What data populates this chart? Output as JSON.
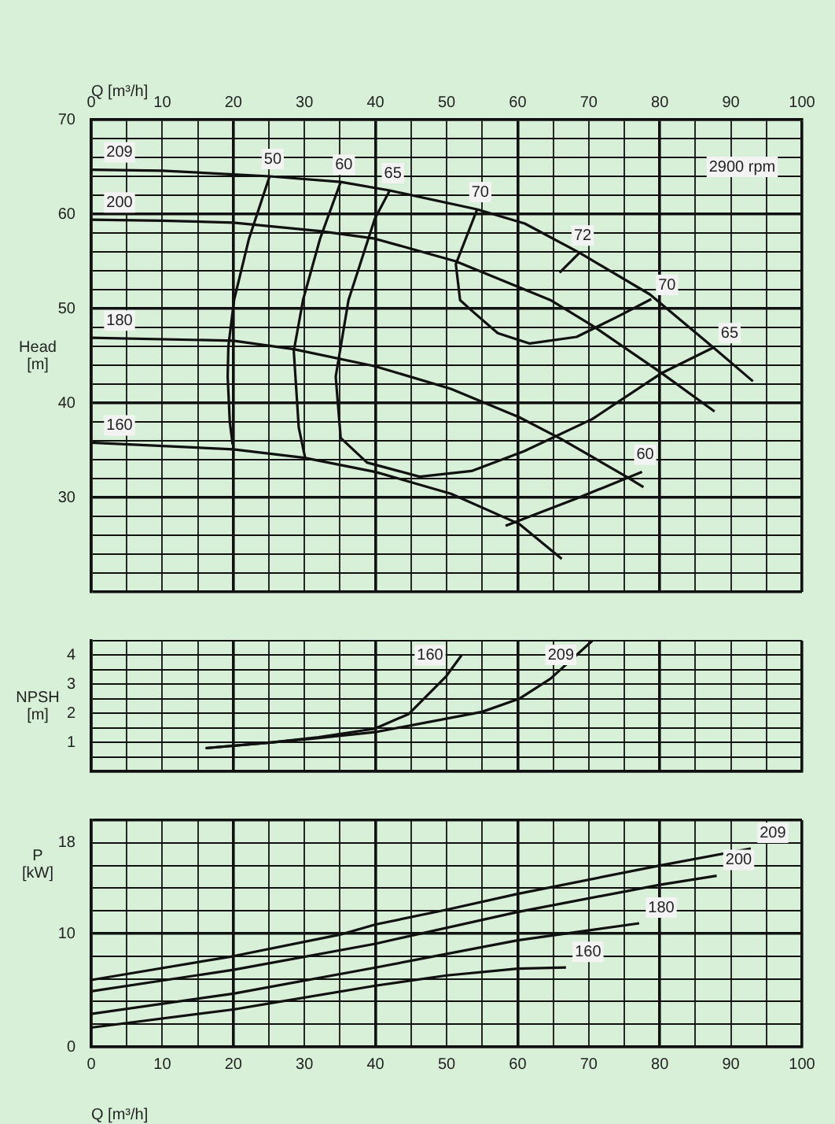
{
  "chart_data": [
    {
      "type": "line",
      "ylabel": "Head [m]",
      "xlabel": "Q [m³/h]",
      "xlim": [
        0,
        100
      ],
      "xticks": [
        0,
        {
          "value": 5,
          "label": null
        },
        10,
        {
          "value": 15,
          "label": null
        },
        20,
        {
          "value": 25,
          "label": null
        },
        30,
        {
          "value": 35,
          "label": null
        },
        40,
        {
          "value": 45,
          "label": null
        },
        50,
        {
          "value": 55,
          "label": null
        },
        60,
        {
          "value": 65,
          "label": null
        },
        70,
        {
          "value": 75,
          "label": null
        },
        80,
        {
          "value": 85,
          "label": null
        },
        90,
        {
          "value": 95,
          "label": null
        },
        100
      ],
      "ylim": [
        20,
        70
      ],
      "yticks": [
        {
          "value": 20,
          "label": null
        },
        {
          "value": 22,
          "label": null
        },
        {
          "value": 24,
          "label": null
        },
        {
          "value": 26,
          "label": null
        },
        {
          "value": 28,
          "label": null
        },
        30,
        {
          "value": 32,
          "label": null
        },
        {
          "value": 34,
          "label": null
        },
        {
          "value": 36,
          "label": null
        },
        {
          "value": 38,
          "label": null
        },
        40,
        {
          "value": 42,
          "label": null
        },
        {
          "value": 44,
          "label": null
        },
        {
          "value": 46,
          "label": null
        },
        {
          "value": 48,
          "label": null
        },
        50,
        {
          "value": 52,
          "label": null
        },
        {
          "value": 54,
          "label": null
        },
        {
          "value": 56,
          "label": null
        },
        {
          "value": 58,
          "label": null
        },
        60,
        {
          "value": 62,
          "label": null
        },
        {
          "value": 64,
          "label": null
        },
        {
          "value": 66,
          "label": null
        },
        {
          "value": 68,
          "label": null
        },
        70
      ],
      "grid": true,
      "legend": false,
      "marker": "none",
      "annotations": [
        "2900 rpm"
      ],
      "series": [
        {
          "name": "209",
          "color": "#111111",
          "x": [
            0,
            10,
            20,
            25.1,
            35.1,
            42,
            54.3,
            61,
            68.7,
            78.6,
            87.5,
            93.1
          ],
          "values": [
            64.7,
            64.6,
            64.2,
            64.0,
            63.4,
            62.5,
            60.5,
            59.0,
            55.9,
            51.5,
            45.9,
            42.3
          ]
        },
        {
          "name": "200",
          "color": "#111111",
          "x": [
            0,
            10,
            20,
            32.2,
            39.9,
            51.3,
            64.6,
            70.5,
            80,
            87.7
          ],
          "values": [
            59.4,
            59.3,
            59.1,
            58.2,
            57.4,
            55.0,
            50.9,
            48.2,
            43.3,
            39.1
          ]
        },
        {
          "name": "180",
          "color": "#111111",
          "x": [
            0,
            20,
            28.5,
            39.9,
            50.6,
            60.2,
            66.1,
            75.3,
            77.7
          ],
          "values": [
            46.9,
            46.6,
            45.7,
            43.9,
            41.5,
            38.5,
            36.2,
            32.2,
            31.1
          ]
        },
        {
          "name": "160",
          "color": "#111111",
          "x": [
            0,
            20,
            30,
            40,
            50.6,
            60.2,
            66.2
          ],
          "values": [
            35.8,
            35.1,
            34.2,
            32.7,
            30.4,
            27.2,
            23.5
          ]
        },
        {
          "name": "50",
          "color": "#111111",
          "x": [
            25.1,
            22.2,
            20.1,
            19.3,
            19.2,
            19.5,
            19.9
          ],
          "values": [
            64.0,
            57.4,
            50.9,
            46.0,
            42.8,
            38.0,
            35.6
          ]
        },
        {
          "name": "60",
          "color": "#111111",
          "x": [
            35.1,
            32.2,
            29.8,
            28.5,
            29.2,
            30.1
          ],
          "values": [
            63.4,
            57.4,
            50.9,
            45.5,
            37.4,
            34.2
          ]
        },
        {
          "name": "65",
          "color": "#111111",
          "x": [
            42,
            39.9,
            36.2,
            34.4,
            35.1,
            38.8,
            46.2,
            53.5,
            60.9,
            70.5,
            80.1,
            87.6
          ],
          "values": [
            62.5,
            59.5,
            50.9,
            42.8,
            36.3,
            33.7,
            32.2,
            32.8,
            34.9,
            38.3,
            43.1,
            45.9
          ]
        },
        {
          "name": "70",
          "color": "#111111",
          "x": [
            54.3,
            51.3,
            51.9,
            53.5,
            57.2,
            61.7,
            68.3,
            74.2,
            78.8
          ],
          "values": [
            60.5,
            54.7,
            50.9,
            49.8,
            47.4,
            46.3,
            47.0,
            49.2,
            51.0
          ]
        },
        {
          "name": "72",
          "color": "#111111",
          "x": [
            68.7,
            65.9
          ],
          "values": [
            55.9,
            53.8
          ]
        },
        {
          "name": "60",
          "color": "#111111",
          "x": [
            77.5,
            68.3,
            58.3
          ],
          "values": [
            32.7,
            29.9,
            27.0
          ]
        }
      ]
    },
    {
      "type": "line",
      "ylabel": "NPSH [m]",
      "xlim": [
        0,
        100
      ],
      "tick_labels": "y",
      "xticks": [
        {
          "value": 0,
          "label": null
        },
        {
          "value": 5,
          "label": null
        },
        {
          "value": 10,
          "label": null
        },
        {
          "value": 15,
          "label": null
        },
        {
          "value": 20,
          "label": null
        },
        {
          "value": 25,
          "label": null
        },
        {
          "value": 30,
          "label": null
        },
        {
          "value": 35,
          "label": null
        },
        {
          "value": 40,
          "label": null
        },
        {
          "value": 45,
          "label": null
        },
        {
          "value": 50,
          "label": null
        },
        {
          "value": 55,
          "label": null
        },
        {
          "value": 60,
          "label": null
        },
        {
          "value": 65,
          "label": null
        },
        {
          "value": 70,
          "label": null
        },
        {
          "value": 75,
          "label": null
        },
        {
          "value": 80,
          "label": null
        },
        {
          "value": 85,
          "label": null
        },
        {
          "value": 90,
          "label": null
        },
        {
          "value": 95,
          "label": null
        },
        {
          "value": 100,
          "label": null
        }
      ],
      "ylim": [
        0,
        4.5
      ],
      "yticks": [
        {
          "value": 0,
          "label": null
        },
        {
          "value": 0.5,
          "label": null
        },
        1,
        {
          "value": 1.5,
          "label": null
        },
        2,
        {
          "value": 2.5,
          "label": null
        },
        3,
        {
          "value": 3.5,
          "label": null
        },
        4,
        {
          "value": 4.5,
          "label": null
        }
      ],
      "grid": true,
      "legend": false,
      "marker": "none",
      "series": [
        {
          "name": "160",
          "color": "#111111",
          "x": [
            16.1,
            25.5,
            32,
            39.9,
            44.7,
            49.9,
            52.1
          ],
          "values": [
            0.8,
            1.0,
            1.18,
            1.47,
            1.98,
            3.26,
            4.0
          ]
        },
        {
          "name": "209",
          "color": "#111111",
          "x": [
            16.1,
            25.5,
            32,
            39.9,
            55,
            60.2,
            64.6,
            70.5
          ],
          "values": [
            0.8,
            1.0,
            1.15,
            1.35,
            2.05,
            2.5,
            3.19,
            4.5
          ]
        }
      ]
    },
    {
      "type": "line",
      "ylabel": "P [kW]",
      "xlabel": "Q [m³/h]",
      "xlim": [
        0,
        100
      ],
      "xticks": [
        0,
        {
          "value": 5,
          "label": null
        },
        10,
        {
          "value": 15,
          "label": null
        },
        20,
        {
          "value": 25,
          "label": null
        },
        30,
        {
          "value": 35,
          "label": null
        },
        40,
        {
          "value": 45,
          "label": null
        },
        50,
        {
          "value": 55,
          "label": null
        },
        60,
        {
          "value": 65,
          "label": null
        },
        70,
        {
          "value": 75,
          "label": null
        },
        80,
        {
          "value": 85,
          "label": null
        },
        90,
        {
          "value": 95,
          "label": null
        },
        100
      ],
      "ylim": [
        0,
        20
      ],
      "yticks": [
        0,
        {
          "value": 2,
          "label": null
        },
        {
          "value": 4,
          "label": null
        },
        {
          "value": 6,
          "label": null
        },
        {
          "value": 8,
          "label": null
        },
        10,
        {
          "value": 12,
          "label": null
        },
        {
          "value": 14,
          "label": null
        },
        {
          "value": 16,
          "label": null
        },
        18,
        {
          "value": 20,
          "label": null
        }
      ],
      "grid": true,
      "legend": false,
      "marker": "none",
      "series": [
        {
          "name": "209",
          "color": "#111111",
          "x": [
            0,
            20,
            35,
            40,
            50,
            60,
            80,
            92.8
          ],
          "values": [
            5.9,
            8.0,
            9.9,
            10.8,
            12.1,
            13.5,
            16.0,
            17.5
          ]
        },
        {
          "name": "200",
          "color": "#111111",
          "x": [
            0,
            20,
            40,
            60,
            80,
            88
          ],
          "values": [
            4.9,
            6.8,
            9.1,
            11.9,
            14.3,
            15.1
          ]
        },
        {
          "name": "180",
          "color": "#111111",
          "x": [
            0,
            20,
            40,
            60,
            77.1
          ],
          "values": [
            2.9,
            4.7,
            7.0,
            9.4,
            10.9
          ]
        },
        {
          "name": "160",
          "color": "#111111",
          "x": [
            0,
            20,
            40,
            50,
            60,
            66.8
          ],
          "values": [
            1.7,
            3.3,
            5.4,
            6.3,
            6.9,
            7.0
          ]
        }
      ]
    }
  ]
}
